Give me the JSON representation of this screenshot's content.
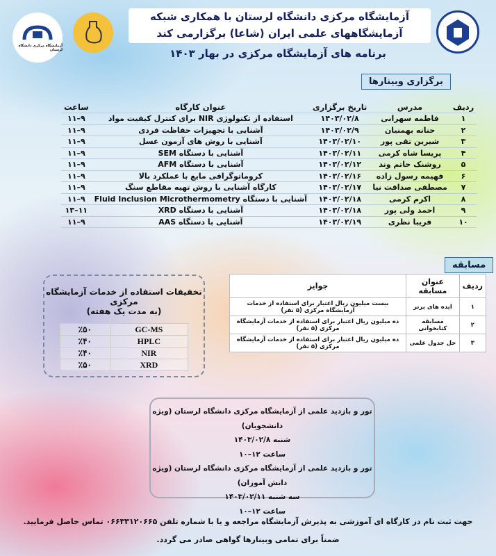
{
  "header": {
    "line1": "آزمایشگاه مرکزی دانشگاه لرستان با همکاری شبکه",
    "line2": "آزمایشگاههای علمی ایران (شاعا) برگزارمی کند",
    "subtitle": "برنامه های آزمایشگاه مرکزی در بهار ۱۴۰۳"
  },
  "logos": {
    "right": "دانشگاه لرستان",
    "left": "آزمایشگاه مرکزی دانشگاه لرستان"
  },
  "webinars": {
    "label": "برگزاری وبینارها",
    "headers": [
      "ردیف",
      "مدرس",
      "تاریخ برگزاری",
      "عنوان کارگاه",
      "ساعت"
    ],
    "rows": [
      [
        "۱",
        "فاطمه سهرابی",
        "۱۴۰۳/۰۲/۸",
        "استفاده از تکنولوژی NIR برای کنترل کیفیت مواد",
        "۹–۱۱"
      ],
      [
        "۲",
        "حنانه بهمنیان",
        "۱۴۰۳/۰۲/۹",
        "آشنایی با تجهیزات حفاظت فردی",
        "۹–۱۱"
      ],
      [
        "۳",
        "شیرین تقی پور",
        "۱۴۰۳/۰۲/۱۰",
        "آشنایی با روش های آزمون عسل",
        "۹–۱۱"
      ],
      [
        "۴",
        "پریسا شاه کرمی",
        "۱۴۰۳/۰۲/۱۱",
        "آشنایی با دستگاه SEM",
        "۹–۱۱"
      ],
      [
        "۵",
        "روشنک حاتم وند",
        "۱۴۰۳/۰۲/۱۲",
        "آشنایی با دستگاه AFM",
        "۹–۱۱"
      ],
      [
        "۶",
        "فهیمه رسول زاده",
        "۱۴۰۳/۰۲/۱۶",
        "کروماتوگرافی مایع با عملکرد بالا",
        "۹–۱۱"
      ],
      [
        "۷",
        "مصطفی صداقت نیا",
        "۱۴۰۳/۰۲/۱۷",
        "کارگاه آشنایی با روش تهیه مقاطع سنگ",
        "۹–۱۱"
      ],
      [
        "۸",
        "اکرم کرمی",
        "۱۴۰۳/۰۲/۱۸",
        "آشنایی با دستگاه Fluid Inclusion Microthermometry",
        "۹–۱۱"
      ],
      [
        "۹",
        "احمد ولی پور",
        "۱۴۰۳/۰۲/۱۸",
        "آشنایی با دستگاه XRD",
        "۱۱–۱۳"
      ],
      [
        "۱۰",
        "فریبا نظری",
        "۱۴۰۳/۰۲/۱۹",
        "آشنایی با دستگاه AAS",
        "۹–۱۱"
      ]
    ]
  },
  "contest": {
    "label": "مسابقه",
    "headers": [
      "ردیف",
      "عنوان مسابقه",
      "جوایز"
    ],
    "rows": [
      [
        "۱",
        "ایده های برتر",
        "بیست میلیون ریال اعتبار برای استفاده از خدمات آزمایشگاه مرکزی (۵ نفر)"
      ],
      [
        "۲",
        "مسابقه کتابخوانی",
        "ده میلیون ریال اعتبار برای استفاده از خدمات آزمایشگاه مرکزی (۵ نفر)"
      ],
      [
        "۳",
        "حل جدول علمی",
        "ده میلیون ریال اعتبار برای استفاده از خدمات آزمایشگاه مرکزی (۵ نفر)"
      ]
    ]
  },
  "discounts": {
    "title": "تخفیفات استفاده از خدمات آزمایشگاه مرکزی",
    "subtitle": "(به مدت یک هفته)",
    "rows": [
      [
        "GC-MS",
        "٪۵۰"
      ],
      [
        "HPLC",
        "٪۴۰"
      ],
      [
        "NIR",
        "٪۴۰"
      ],
      [
        "XRD",
        "٪۵۰"
      ]
    ]
  },
  "tour": {
    "lines": [
      "تور و بازدید علمی از آزمایشگاه مرکزی دانشگاه لرستان (ویژه دانشجویان)",
      "شنبه ۱۴۰۳/۰۲/۸",
      "ساعت ۱۲–۱۰",
      "تور و بازدید علمی از آزمایشگاه مرکزی دانشگاه لرستان (ویژه دانش آموزان)",
      "سه شنبه ۱۴۰۳/۰۲/۱۱",
      "ساعت ۱۲–۱۰"
    ]
  },
  "footer": {
    "line1": "جهت ثبت نام در کارگاه ای آموزشی به پذیرش آزمایشگاه مراجعه و یا با شماره تلفن ۰۶۶۳۳۱۲۰۶۶۵ تماس حاصل فرمایید.",
    "line2": "ضمناً برای تمامی وبینارها گواهی صادر می گردد."
  }
}
